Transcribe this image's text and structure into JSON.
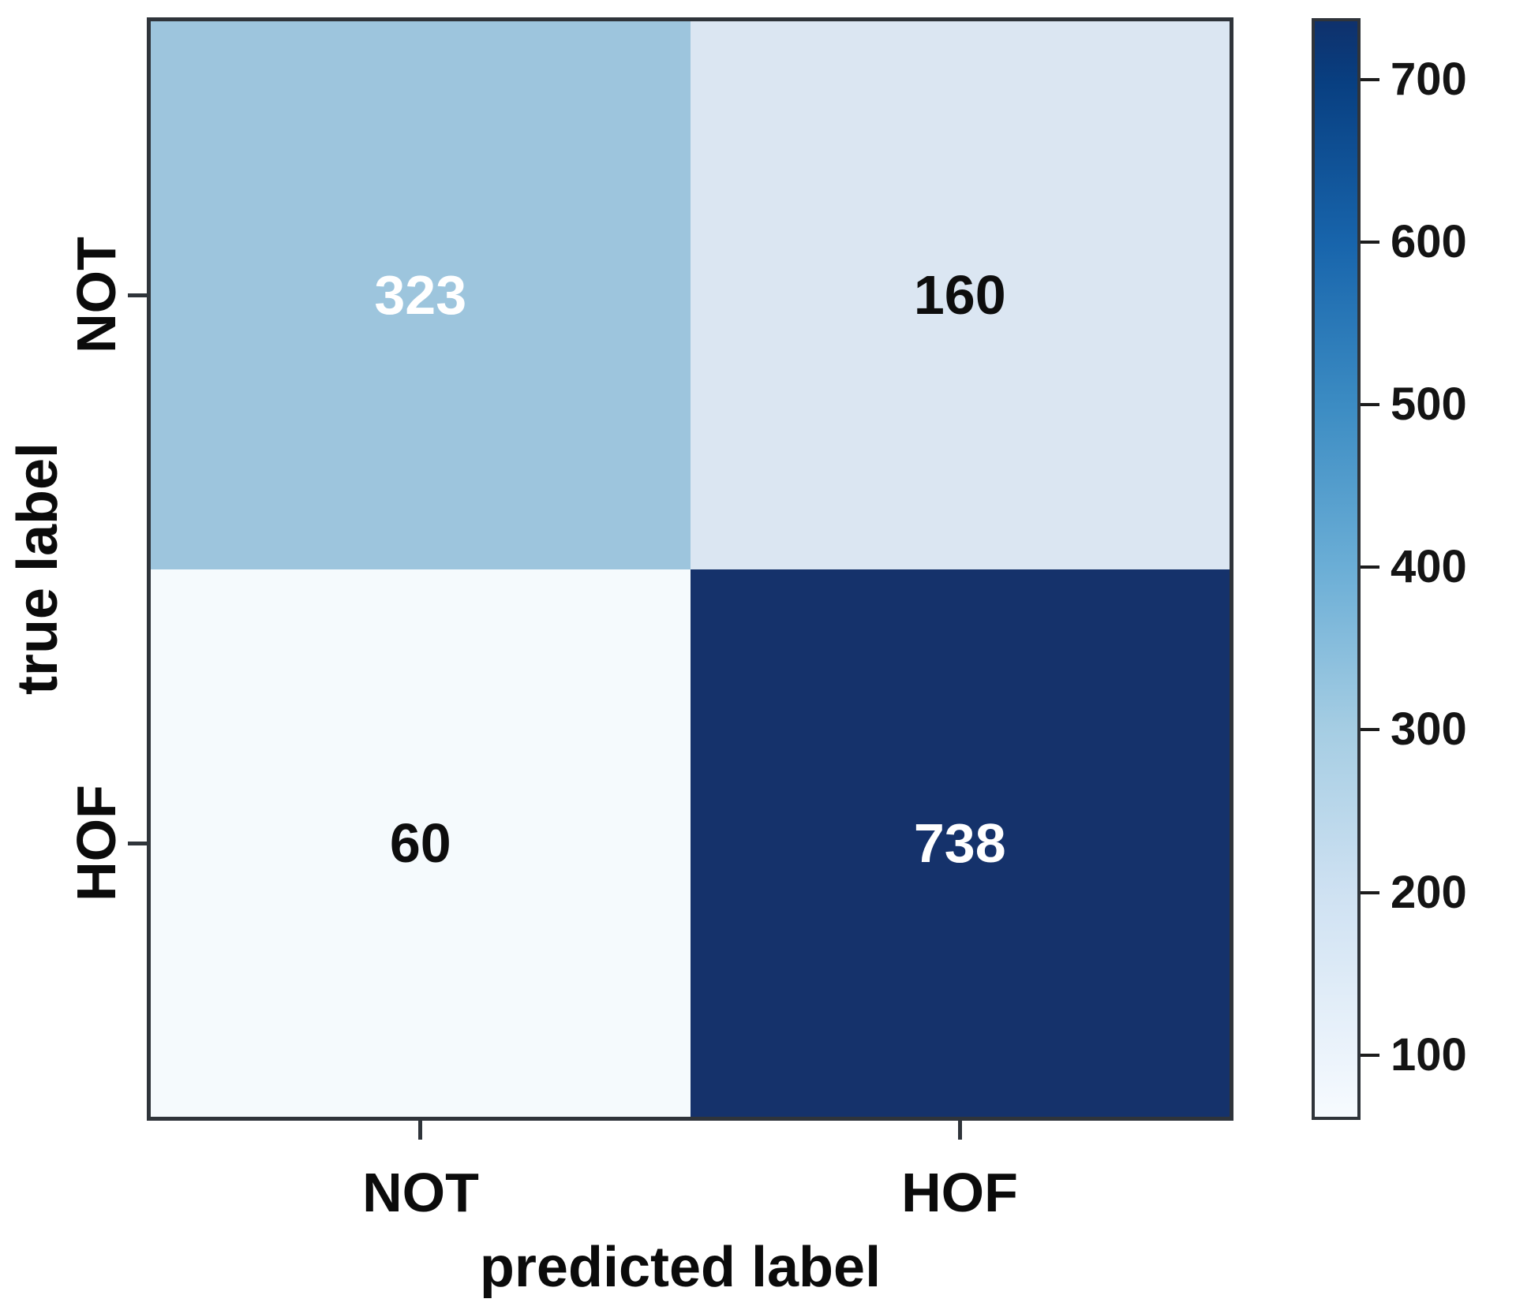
{
  "figure": {
    "background": "#ffffff",
    "axes_color": "#2f343a"
  },
  "chart_data": {
    "type": "heatmap",
    "title": "",
    "xlabel": "predicted label",
    "ylabel": "true label",
    "x_categories": [
      "NOT",
      "HOF"
    ],
    "y_categories": [
      "NOT",
      "HOF"
    ],
    "matrix": [
      [
        323,
        160
      ],
      [
        60,
        738
      ]
    ],
    "cells": [
      {
        "row": "NOT",
        "col": "NOT",
        "value": "323",
        "bg": "#9dc5dd",
        "fg": "#ffffff"
      },
      {
        "row": "NOT",
        "col": "HOF",
        "value": "160",
        "bg": "#dbe6f2",
        "fg": "#0d0d0d"
      },
      {
        "row": "HOF",
        "col": "NOT",
        "value": "60",
        "bg": "#f5fafd",
        "fg": "#0d0d0d"
      },
      {
        "row": "HOF",
        "col": "HOF",
        "value": "738",
        "bg": "#15326b",
        "fg": "#ffffff"
      }
    ],
    "colorbar": {
      "colormap": "Blues",
      "vmin": 60,
      "vmax": 738,
      "ticks": [
        100,
        200,
        300,
        400,
        500,
        600,
        700
      ],
      "gradient": [
        {
          "pos": 0,
          "color": "#0f316c"
        },
        {
          "pos": 5.6,
          "color": "#083f81"
        },
        {
          "pos": 20.4,
          "color": "#1865ac"
        },
        {
          "pos": 35.1,
          "color": "#3c8cc3"
        },
        {
          "pos": 49.9,
          "color": "#6baed6"
        },
        {
          "pos": 64.6,
          "color": "#a5cde3"
        },
        {
          "pos": 79.4,
          "color": "#cee1f2"
        },
        {
          "pos": 94.1,
          "color": "#ebf3fb"
        },
        {
          "pos": 100,
          "color": "#f7fbff"
        }
      ]
    },
    "legend": {
      "position": "right-colorbar",
      "grid": false
    }
  }
}
